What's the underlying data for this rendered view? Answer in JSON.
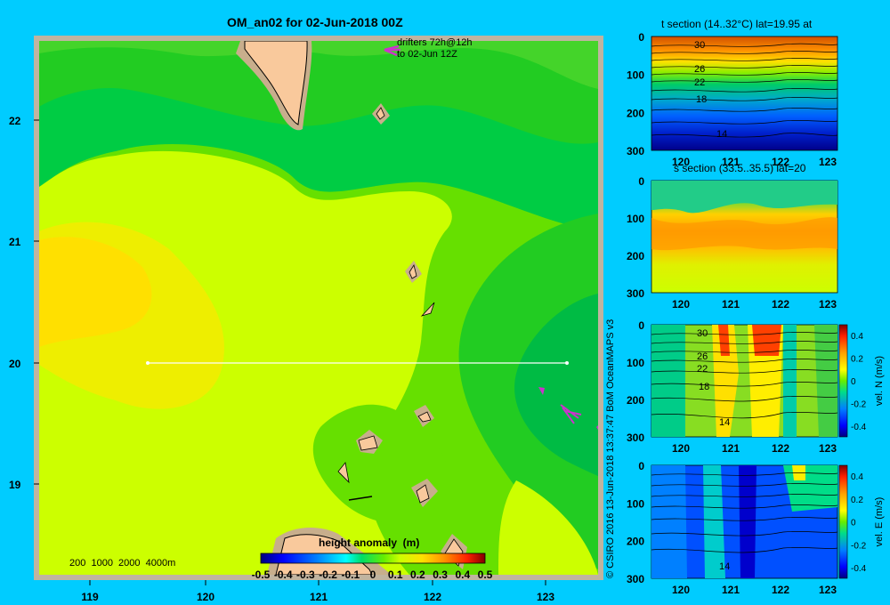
{
  "title": "OM_an02 for 02-Jun-2018 00Z",
  "map": {
    "y_ticks": [
      "22",
      "21",
      "20",
      "19"
    ],
    "x_ticks": [
      "119",
      "120",
      "121",
      "122",
      "123"
    ],
    "drifters_line1": "drifters 72h@12h",
    "drifters_line2": "to 02-Jun 12Z",
    "depth_legend": "200  1000  2000  4000m",
    "colorbar_title": "height anomaly  (m)",
    "colorbar_ticks": [
      "-0.5",
      "-0.4",
      "-0.3",
      "-0.2",
      "-0.1",
      "0",
      "0.1",
      "0.2",
      "0.3",
      "0.4",
      "0.5"
    ],
    "colors": {
      "land": "#f9c99c",
      "reef": "#c8ae8c",
      "frame": "#c0b4a0",
      "section_line": "#ffffff",
      "drifter": "#cc33cc"
    }
  },
  "credit": "© CSIRO 2016   13-Jun-2018 13:37:47 BoM OceanMAPS v3",
  "panels": {
    "t": {
      "title": "t section (14..32°C) lat=19.95 at",
      "labels": [
        "30",
        "26",
        "22",
        "18",
        "14"
      ],
      "y_ticks": [
        "0",
        "100",
        "200",
        "300"
      ],
      "x_ticks": [
        "120",
        "121",
        "122",
        "123"
      ]
    },
    "s": {
      "title": "s section (33.5..35.5) lat=20",
      "y_ticks": [
        "0",
        "100",
        "200",
        "300"
      ],
      "x_ticks": [
        "120",
        "121",
        "122",
        "123"
      ]
    },
    "n": {
      "labels": [
        "30",
        "26",
        "22",
        "18",
        "14"
      ],
      "y_ticks": [
        "0",
        "100",
        "200",
        "300"
      ],
      "x_ticks": [
        "120",
        "121",
        "122",
        "123"
      ],
      "cbar_ticks": [
        "0.4",
        "0.2",
        "0",
        "-0.2",
        "-0.4"
      ],
      "cbar_label": "vel. N  (m/s)"
    },
    "e": {
      "labels": [
        "14"
      ],
      "y_ticks": [
        "0",
        "100",
        "200",
        "300"
      ],
      "x_ticks": [
        "120",
        "121",
        "122",
        "123"
      ],
      "cbar_ticks": [
        "0.4",
        "0.2",
        "0",
        "-0.2",
        "-0.4"
      ],
      "cbar_label": "vel. E  (m/s)"
    }
  }
}
